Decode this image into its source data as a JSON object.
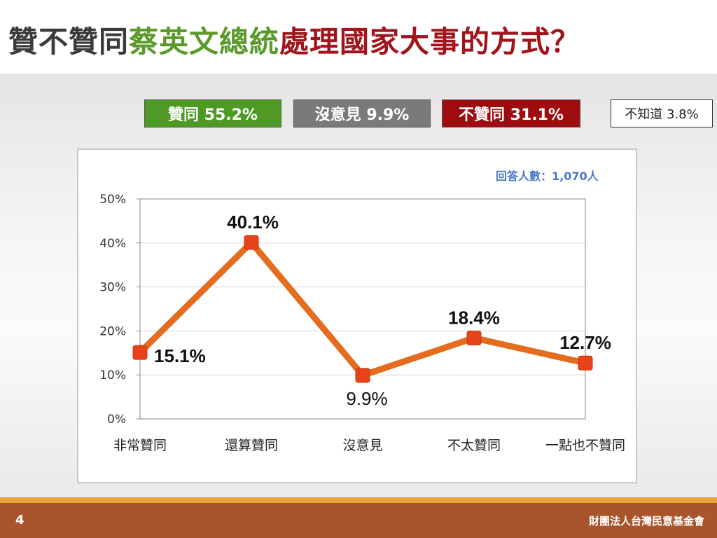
{
  "title": {
    "part1": "贊不贊同",
    "part2": "蔡英文總統",
    "part3": "處理國家大事的方式？"
  },
  "summary": {
    "agree": "贊同 55.2%",
    "neutral": "沒意見 9.9%",
    "disagree": "不贊同 31.1%",
    "unknown": "不知道 3.8%"
  },
  "respondents": "回答人數：1,070人",
  "chart_data": {
    "type": "line",
    "categories": [
      "非常贊同",
      "還算贊同",
      "沒意見",
      "不太贊同",
      "一點也不贊同"
    ],
    "values": [
      15.1,
      40.1,
      9.9,
      18.4,
      12.7
    ],
    "data_labels": [
      "15.1%",
      "40.1%",
      "9.9%",
      "18.4%",
      "12.7%"
    ],
    "ylim": [
      0,
      50
    ],
    "yticks": [
      "0%",
      "10%",
      "20%",
      "30%",
      "40%",
      "50%"
    ],
    "grid": true,
    "line_color": "#e36c1e",
    "marker_color": "#e8421a"
  },
  "footer": {
    "page": "4",
    "org": "財團法人台灣民意基金會"
  }
}
